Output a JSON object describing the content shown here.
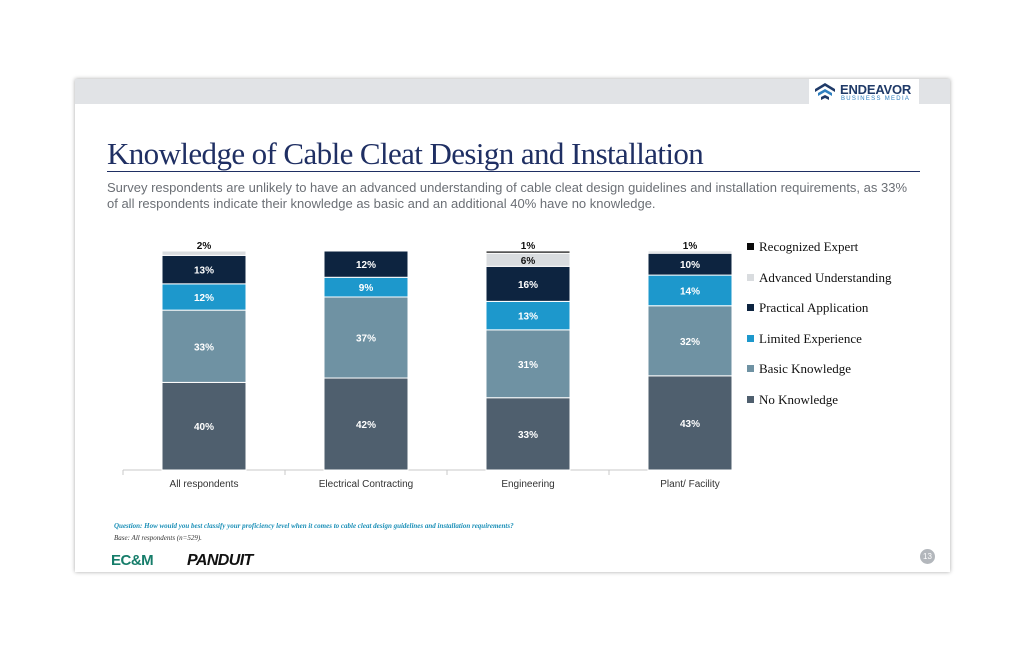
{
  "header": {
    "logo_name": "ENDEAVOR",
    "logo_sub": "BUSINESS MEDIA",
    "logo_icon": "endeavor-mark-icon"
  },
  "title": "Knowledge of Cable Cleat Design and Installation",
  "subtitle": "Survey respondents are unlikely to have an advanced understanding of cable cleat design guidelines and installation requirements, as 33% of all respondents indicate their knowledge as basic and an additional 40% have no knowledge.",
  "chart_data": {
    "type": "bar",
    "stacked": true,
    "categories": [
      "All respondents",
      "Electrical Contracting",
      "Engineering",
      "Plant/ Facility"
    ],
    "series": [
      {
        "name": "No Knowledge",
        "color": "#4f5f6e",
        "values": [
          40,
          42,
          33,
          43
        ],
        "labels": [
          "40%",
          "42%",
          "33%",
          "43%"
        ]
      },
      {
        "name": "Basic Knowledge",
        "color": "#6f92a3",
        "values": [
          33,
          37,
          31,
          32
        ],
        "labels": [
          "33%",
          "37%",
          "31%",
          "32%"
        ]
      },
      {
        "name": "Limited Experience",
        "color": "#1d98cc",
        "values": [
          12,
          9,
          13,
          14
        ],
        "labels": [
          "12%",
          "9%",
          "13%",
          "14%"
        ]
      },
      {
        "name": "Practical Application",
        "color": "#0d2440",
        "values": [
          13,
          12,
          16,
          10
        ],
        "labels": [
          "13%",
          "12%",
          "16%",
          "10%"
        ]
      },
      {
        "name": "Advanced Understanding",
        "color": "#d9dcdf",
        "values": [
          2,
          0,
          6,
          1
        ],
        "labels": [
          "2%",
          "",
          "6%",
          "1%"
        ]
      },
      {
        "name": "Recognized Expert",
        "color": "#0a0a0a",
        "values": [
          0,
          0,
          1,
          0
        ],
        "labels": [
          "",
          "",
          "1%",
          ""
        ]
      }
    ],
    "legend_order": [
      "Recognized Expert",
      "Advanced Understanding",
      "Practical Application",
      "Limited Experience",
      "Basic Knowledge",
      "No Knowledge"
    ],
    "ylim": [
      0,
      100
    ],
    "grid": false,
    "legend_position": "right"
  },
  "footer": {
    "question": "Question: How would you best classify your proficiency level when it comes to cable cleat design guidelines and installation requirements?",
    "base": "Base: All respondents (n=529).",
    "logo_left": "EC&M",
    "logo_right": "PANDUIT",
    "page_number": "13"
  },
  "colors": {
    "title": "#1f2f63",
    "accent_question": "#1a8fb7",
    "topbar": "#e1e3e6"
  }
}
